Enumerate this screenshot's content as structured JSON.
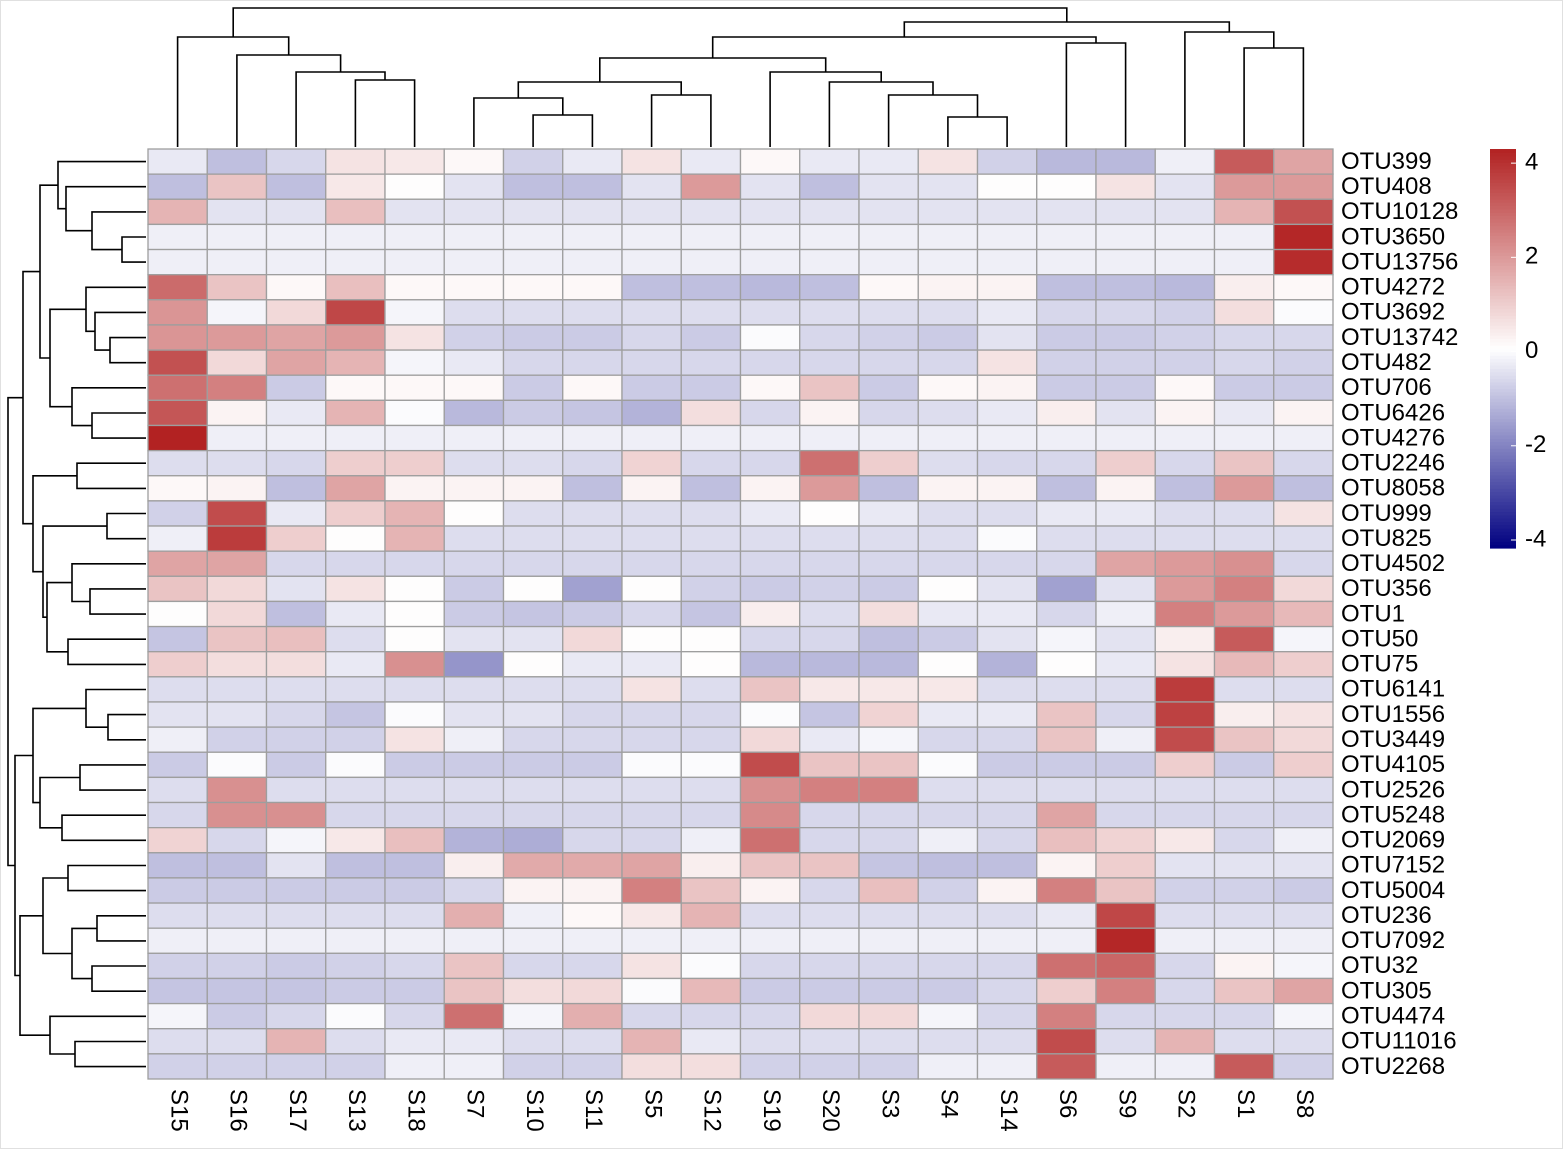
{
  "chart_data": {
    "type": "heatmap",
    "columns": [
      "S15",
      "S16",
      "S17",
      "S13",
      "S18",
      "S7",
      "S10",
      "S11",
      "S5",
      "S12",
      "S19",
      "S20",
      "S3",
      "S4",
      "S14",
      "S6",
      "S9",
      "S2",
      "S1",
      "S8"
    ],
    "rows": [
      "OTU399",
      "OTU408",
      "OTU10128",
      "OTU3650",
      "OTU13756",
      "OTU4272",
      "OTU3692",
      "OTU13742",
      "OTU482",
      "OTU706",
      "OTU6426",
      "OTU4276",
      "OTU2246",
      "OTU8058",
      "OTU999",
      "OTU825",
      "OTU4502",
      "OTU356",
      "OTU1",
      "OTU50",
      "OTU75",
      "OTU6141",
      "OTU1556",
      "OTU3449",
      "OTU4105",
      "OTU2526",
      "OTU5248",
      "OTU2069",
      "OTU7152",
      "OTU5004",
      "OTU236",
      "OTU7092",
      "OTU32",
      "OTU305",
      "OTU4474",
      "OTU11016",
      "OTU2268"
    ],
    "values": [
      [
        -0.3,
        -1.0,
        -0.6,
        0.6,
        0.5,
        0.2,
        -0.7,
        -0.3,
        0.6,
        -0.3,
        0.2,
        -0.3,
        -0.3,
        0.6,
        -0.7,
        -1.1,
        -1.1,
        -0.2,
        3.2,
        1.8
      ],
      [
        -1.0,
        1.2,
        -1.0,
        0.5,
        0.1,
        -0.4,
        -1.0,
        -1.0,
        -0.4,
        2.0,
        -0.4,
        -1.0,
        -0.4,
        -0.4,
        0.1,
        0.1,
        0.6,
        -0.4,
        2.0,
        2.0
      ],
      [
        1.5,
        -0.4,
        -0.4,
        1.3,
        -0.4,
        -0.4,
        -0.4,
        -0.4,
        -0.4,
        -0.4,
        -0.4,
        -0.4,
        -0.4,
        -0.4,
        -0.4,
        -0.4,
        -0.4,
        -0.4,
        1.5,
        3.4
      ],
      [
        -0.2,
        -0.2,
        -0.2,
        -0.2,
        -0.2,
        -0.2,
        -0.2,
        -0.2,
        -0.2,
        -0.2,
        -0.2,
        -0.2,
        -0.2,
        -0.2,
        -0.2,
        -0.2,
        -0.2,
        -0.2,
        -0.2,
        4.2
      ],
      [
        -0.2,
        -0.2,
        -0.2,
        -0.2,
        -0.2,
        -0.2,
        -0.2,
        -0.2,
        -0.2,
        -0.2,
        -0.2,
        -0.2,
        -0.2,
        -0.2,
        -0.2,
        -0.2,
        -0.2,
        -0.2,
        -0.2,
        4.1
      ],
      [
        2.9,
        1.2,
        0.2,
        1.3,
        0.2,
        0.2,
        0.2,
        0.2,
        -1.0,
        -1.0,
        -1.1,
        -1.0,
        0.2,
        0.3,
        0.3,
        -1.0,
        -1.0,
        -1.1,
        0.4,
        0.2
      ],
      [
        2.1,
        -0.1,
        0.8,
        3.6,
        -0.1,
        -0.5,
        -0.5,
        -0.5,
        -0.5,
        -0.5,
        -0.5,
        -0.5,
        -0.5,
        -0.5,
        -0.3,
        -0.6,
        -0.6,
        -0.7,
        0.7,
        0.0
      ],
      [
        2.1,
        2.0,
        1.8,
        2.0,
        0.6,
        -0.7,
        -0.8,
        -0.8,
        -0.6,
        -0.8,
        0.0,
        -0.6,
        -0.7,
        -0.8,
        -0.4,
        -0.8,
        -0.8,
        -0.7,
        -0.6,
        -0.6
      ],
      [
        3.4,
        0.8,
        1.8,
        1.5,
        -0.1,
        -0.3,
        -0.6,
        -0.6,
        -0.6,
        -0.6,
        -0.6,
        -0.6,
        -0.6,
        -0.6,
        0.6,
        -0.7,
        -0.7,
        -0.7,
        -0.6,
        -0.7
      ],
      [
        2.8,
        2.5,
        -0.8,
        0.2,
        0.2,
        0.2,
        -0.8,
        0.2,
        -0.8,
        -0.8,
        0.2,
        1.2,
        -0.8,
        0.2,
        0.3,
        -0.8,
        -0.8,
        0.2,
        -0.8,
        -0.8
      ],
      [
        3.3,
        0.3,
        -0.3,
        1.5,
        0.0,
        -1.1,
        -0.8,
        -0.9,
        -1.2,
        0.7,
        -0.6,
        0.3,
        -0.6,
        -0.5,
        -0.3,
        0.4,
        -0.4,
        0.3,
        -0.3,
        0.3
      ],
      [
        4.3,
        -0.2,
        -0.2,
        -0.2,
        -0.2,
        -0.2,
        -0.2,
        -0.2,
        -0.2,
        -0.2,
        -0.2,
        -0.2,
        -0.2,
        -0.2,
        -0.2,
        -0.2,
        -0.2,
        -0.2,
        -0.2,
        -0.2
      ],
      [
        -0.5,
        -0.5,
        -0.6,
        1.0,
        1.0,
        -0.5,
        -0.5,
        -0.6,
        0.9,
        -0.6,
        -0.6,
        2.8,
        1.0,
        -0.5,
        -0.6,
        -0.6,
        1.0,
        -0.6,
        1.2,
        -0.6
      ],
      [
        0.2,
        0.3,
        -1.0,
        1.8,
        0.3,
        0.3,
        0.3,
        -1.0,
        0.3,
        -1.0,
        0.3,
        2.0,
        -1.0,
        0.3,
        0.3,
        -1.0,
        0.3,
        -1.0,
        2.0,
        -1.0
      ],
      [
        -0.7,
        3.5,
        -0.3,
        1.0,
        1.5,
        0.1,
        -0.5,
        -0.5,
        -0.5,
        -0.5,
        -0.3,
        0.1,
        -0.3,
        -0.5,
        -0.5,
        -0.3,
        -0.3,
        -0.5,
        -0.5,
        0.6
      ],
      [
        -0.2,
        3.8,
        1.0,
        0.1,
        1.5,
        -0.5,
        -0.5,
        -0.5,
        -0.5,
        -0.5,
        -0.5,
        -0.5,
        -0.5,
        -0.5,
        0.0,
        -0.5,
        -0.5,
        -0.5,
        -0.5,
        -0.5
      ],
      [
        1.8,
        1.8,
        -0.6,
        -0.6,
        -0.6,
        -0.6,
        -0.6,
        -0.6,
        -0.6,
        -0.6,
        -0.6,
        -0.6,
        -0.6,
        -0.6,
        -0.6,
        -0.6,
        1.8,
        2.0,
        2.2,
        -0.6
      ],
      [
        1.2,
        0.8,
        -0.4,
        0.6,
        0.1,
        -0.8,
        0.1,
        -1.5,
        0.1,
        -0.7,
        -0.8,
        -0.7,
        -0.8,
        0.1,
        -0.4,
        -1.5,
        -0.4,
        2.0,
        2.5,
        0.8
      ],
      [
        0.1,
        0.8,
        -1.0,
        -0.3,
        0.1,
        -0.8,
        -0.9,
        -0.8,
        -0.6,
        -0.9,
        0.4,
        -0.5,
        0.7,
        -0.3,
        -0.3,
        -0.6,
        -0.2,
        2.5,
        2.0,
        1.4
      ],
      [
        -0.9,
        1.2,
        1.3,
        -0.5,
        0.1,
        -0.4,
        -0.4,
        0.8,
        0.1,
        0.1,
        -0.6,
        -0.6,
        -1.0,
        -0.8,
        -0.4,
        -0.1,
        -0.4,
        0.4,
        3.2,
        -0.1
      ],
      [
        1.0,
        0.7,
        0.7,
        -0.3,
        2.2,
        -1.7,
        0.1,
        -0.3,
        -0.3,
        0.1,
        -1.1,
        -1.1,
        -1.1,
        0.1,
        -1.2,
        0.1,
        -0.3,
        0.6,
        1.4,
        1.0
      ],
      [
        -0.5,
        -0.5,
        -0.5,
        -0.5,
        -0.5,
        -0.5,
        -0.5,
        -0.5,
        0.6,
        -0.5,
        1.2,
        0.5,
        0.5,
        0.5,
        -0.5,
        -0.5,
        -0.5,
        3.8,
        -0.5,
        -0.5
      ],
      [
        -0.4,
        -0.4,
        -0.6,
        -0.9,
        0.0,
        -0.4,
        -0.4,
        -0.6,
        -0.6,
        -0.6,
        0.0,
        -0.9,
        0.9,
        -0.3,
        -0.3,
        1.2,
        -0.6,
        3.7,
        0.4,
        0.6
      ],
      [
        -0.2,
        -0.7,
        -0.7,
        -0.7,
        0.6,
        -0.2,
        -0.6,
        -0.6,
        -0.6,
        -0.6,
        0.8,
        -0.3,
        -0.1,
        -0.6,
        -0.6,
        1.2,
        -0.2,
        3.5,
        1.2,
        0.8
      ],
      [
        -0.8,
        0.0,
        -0.8,
        0.0,
        -0.8,
        -0.8,
        -0.8,
        -0.8,
        0.0,
        0.0,
        3.5,
        1.2,
        1.2,
        0.0,
        -0.8,
        -0.8,
        -0.8,
        1.0,
        -0.8,
        1.0
      ],
      [
        -0.5,
        2.2,
        -0.5,
        -0.5,
        -0.5,
        -0.5,
        -0.5,
        -0.5,
        -0.5,
        -0.5,
        2.2,
        2.5,
        2.5,
        -0.5,
        -0.5,
        -0.5,
        -0.5,
        -0.5,
        -0.5,
        -0.5
      ],
      [
        -0.6,
        2.2,
        2.2,
        -0.6,
        -0.6,
        -0.6,
        -0.6,
        -0.6,
        -0.6,
        -0.6,
        2.3,
        -0.6,
        -0.6,
        -0.6,
        -0.6,
        1.8,
        -0.6,
        -0.6,
        -0.6,
        -0.6
      ],
      [
        0.9,
        -0.6,
        -0.1,
        0.5,
        1.3,
        -1.2,
        -1.3,
        -0.6,
        -0.6,
        -0.2,
        2.8,
        -0.6,
        -0.6,
        -0.2,
        -0.6,
        1.3,
        0.9,
        0.5,
        -0.6,
        -0.2
      ],
      [
        -1.0,
        -1.0,
        -0.4,
        -1.0,
        -1.0,
        0.4,
        1.7,
        1.7,
        1.8,
        0.4,
        1.2,
        1.2,
        -0.9,
        -1.0,
        -1.0,
        0.3,
        1.0,
        -0.4,
        -0.4,
        -0.4
      ],
      [
        -0.8,
        -0.8,
        -0.8,
        -0.8,
        -0.8,
        -0.6,
        0.3,
        0.3,
        2.5,
        1.2,
        0.3,
        -0.6,
        1.3,
        -0.7,
        0.3,
        2.5,
        1.2,
        -0.7,
        -0.7,
        -0.8
      ],
      [
        -0.5,
        -0.5,
        -0.5,
        -0.5,
        -0.5,
        1.6,
        -0.2,
        0.2,
        0.5,
        1.5,
        -0.5,
        -0.5,
        -0.5,
        -0.5,
        -0.5,
        -0.3,
        3.6,
        -0.5,
        -0.5,
        -0.5
      ],
      [
        -0.2,
        -0.2,
        -0.2,
        -0.2,
        -0.2,
        -0.2,
        -0.2,
        -0.2,
        -0.2,
        -0.2,
        -0.2,
        -0.2,
        -0.2,
        -0.2,
        -0.2,
        -0.2,
        4.2,
        -0.2,
        -0.2,
        -0.2
      ],
      [
        -0.7,
        -0.7,
        -0.8,
        -0.7,
        -0.6,
        1.2,
        -0.6,
        -0.6,
        0.6,
        0.0,
        -0.6,
        -0.6,
        -0.6,
        -0.6,
        -0.6,
        2.8,
        3.0,
        -0.6,
        0.3,
        -0.1
      ],
      [
        -0.9,
        -0.9,
        -0.9,
        -0.8,
        -0.8,
        1.2,
        0.7,
        0.8,
        0.0,
        1.4,
        -0.8,
        -0.8,
        -0.8,
        -0.8,
        -0.6,
        1.0,
        2.5,
        -0.6,
        1.2,
        1.8
      ],
      [
        -0.1,
        -0.8,
        -0.6,
        0.0,
        -0.6,
        2.8,
        -0.1,
        1.6,
        -0.6,
        -0.6,
        -0.6,
        0.8,
        0.8,
        -0.1,
        -0.6,
        2.5,
        -0.6,
        -0.6,
        -0.6,
        -0.1
      ],
      [
        -0.5,
        -0.5,
        1.5,
        -0.5,
        -0.3,
        -0.3,
        -0.5,
        -0.5,
        1.5,
        -0.3,
        -0.5,
        -0.5,
        -0.5,
        -0.5,
        -0.5,
        3.5,
        -0.5,
        1.5,
        -0.5,
        -0.5
      ],
      [
        -0.7,
        -0.7,
        -0.7,
        -0.7,
        -0.2,
        -0.2,
        -0.7,
        -0.7,
        0.7,
        0.7,
        -0.7,
        -0.7,
        -0.7,
        -0.2,
        -0.2,
        3.2,
        -0.2,
        -0.2,
        3.2,
        -0.7
      ]
    ],
    "zlim": [
      -4.17,
      4.3
    ],
    "zticks": [
      4,
      2,
      0,
      -2,
      -4
    ],
    "colors": [
      "#000080",
      "#ffffff",
      "#b22222"
    ],
    "cell_border": "#9e9e9e"
  }
}
